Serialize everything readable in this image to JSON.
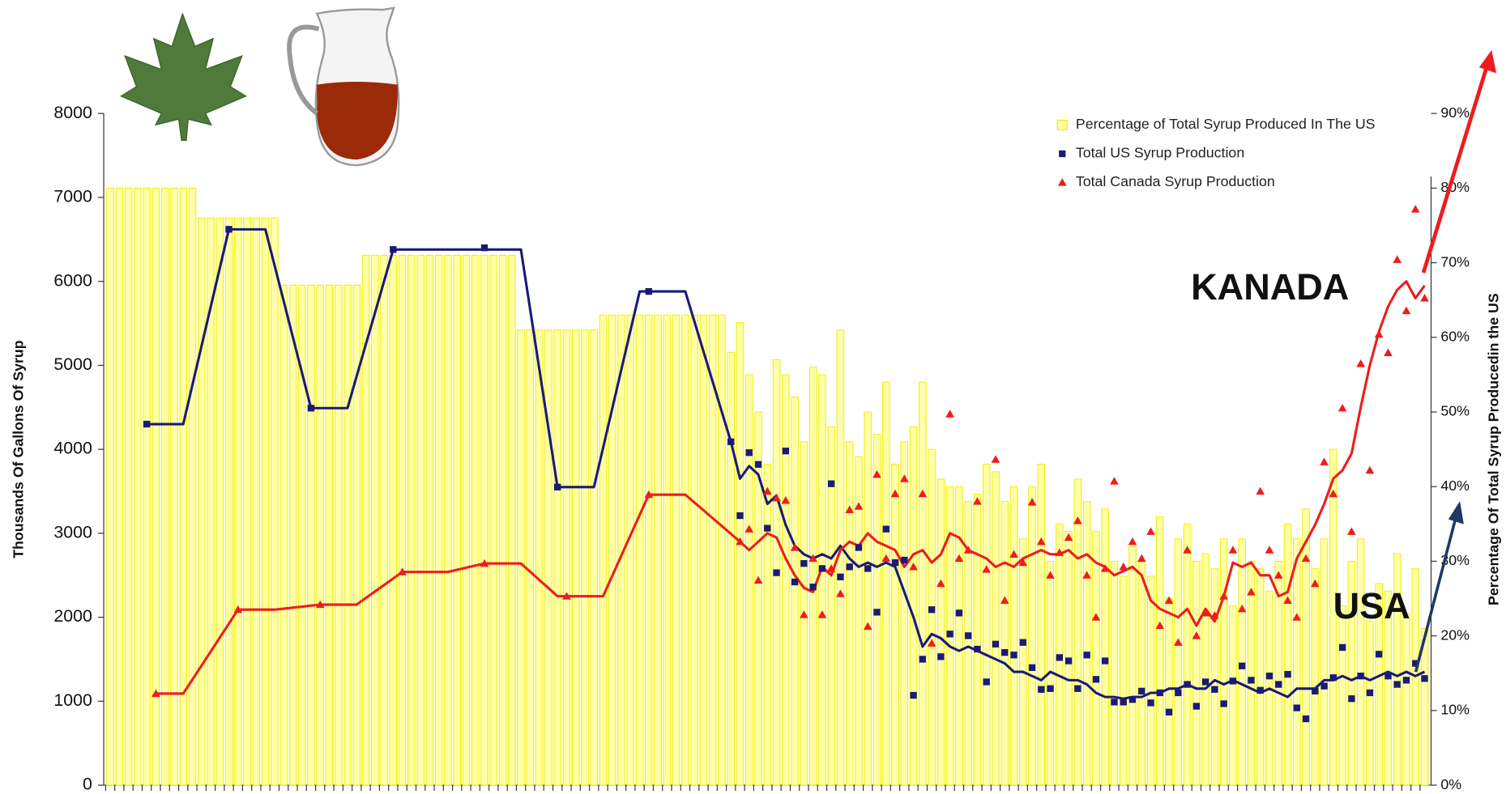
{
  "chart_data": {
    "type": "combo",
    "y_label": "Thousands Of Gallons Of Syrup",
    "y2_label": "Percentage Of Total Syrup Producedin the US",
    "ylim": [
      0,
      8000
    ],
    "yticks": [
      0,
      1000,
      2000,
      3000,
      4000,
      5000,
      6000,
      7000,
      8000
    ],
    "y2lim": [
      0,
      90
    ],
    "y2ticks": [
      {
        "value": 0,
        "label": "0%"
      },
      {
        "value": 10,
        "label": "10%"
      },
      {
        "value": 20,
        "label": "20%"
      },
      {
        "value": 30,
        "label": "30%"
      },
      {
        "value": 40,
        "label": "40%"
      },
      {
        "value": 50,
        "label": "50%"
      },
      {
        "value": 60,
        "label": "60%"
      },
      {
        "value": 70,
        "label": "70%"
      },
      {
        "value": 80,
        "label": "80%"
      },
      {
        "value": 90,
        "label": "90%"
      }
    ],
    "legend": "upper right",
    "categories": [
      null,
      null,
      null,
      null,
      null,
      null,
      null,
      null,
      null,
      null,
      null,
      null,
      null,
      null,
      null,
      null,
      null,
      null,
      null,
      null,
      null,
      null,
      null,
      null,
      null,
      null,
      null,
      null,
      null,
      null,
      null,
      null,
      null,
      null,
      null,
      null,
      null,
      null,
      null,
      null,
      null,
      null,
      null,
      null,
      null,
      null,
      null,
      null,
      null,
      null,
      null,
      null,
      null,
      null,
      null,
      null,
      null,
      null,
      null,
      null,
      null,
      null,
      null,
      null,
      null,
      null,
      null,
      null,
      null,
      null,
      null,
      null,
      null,
      null,
      null,
      null,
      null,
      null,
      null,
      null,
      null,
      null,
      null,
      null,
      null,
      null,
      null,
      null,
      null,
      null,
      null,
      null,
      null,
      null,
      null,
      null,
      null,
      null,
      null,
      null,
      null,
      null,
      null,
      null,
      null,
      null,
      null,
      null,
      null,
      null,
      null,
      null,
      null,
      null,
      null,
      null,
      null,
      null,
      null,
      null,
      null,
      null,
      null,
      null,
      null,
      null,
      null,
      null,
      null,
      null,
      null,
      null,
      null,
      null,
      null,
      null,
      null,
      null,
      null,
      null,
      null,
      null,
      null,
      null,
      null
    ],
    "series": [
      {
        "name": "Percentage of Total Syrup Produced In The US",
        "style": "bar",
        "axis": "y2",
        "color": "#ffffa6",
        "edge": "#eeee00",
        "values": [
          80,
          80,
          80,
          80,
          80,
          80,
          80,
          80,
          80,
          80,
          76,
          76,
          76,
          76,
          76,
          76,
          76,
          76,
          76,
          67,
          67,
          67,
          67,
          67,
          67,
          67,
          67,
          67,
          71,
          71,
          71,
          71,
          71,
          71,
          71,
          71,
          71,
          71,
          71,
          71,
          71,
          71,
          71,
          71,
          71,
          61,
          61,
          61,
          61,
          61,
          61,
          61,
          61,
          61,
          63,
          63,
          63,
          63,
          63,
          63,
          63,
          63,
          63,
          63,
          63,
          63,
          63,
          63,
          58,
          62,
          55,
          50,
          43,
          57,
          55,
          52,
          46,
          56,
          55,
          48,
          61,
          46,
          44,
          50,
          47,
          54,
          43,
          46,
          48,
          54,
          45,
          41,
          40,
          40,
          38,
          39,
          43,
          42,
          38,
          40,
          33,
          40,
          43,
          30,
          35,
          34,
          41,
          38,
          34,
          37,
          30,
          28,
          32,
          30,
          28,
          36,
          25,
          33,
          35,
          30,
          31,
          29,
          33,
          24,
          33,
          30,
          29,
          26,
          30,
          35,
          33,
          37,
          29,
          33,
          45,
          24,
          30,
          33,
          22,
          27,
          26,
          31,
          23,
          29,
          21
        ]
      },
      {
        "name": "Total US Syrup Production",
        "style": "marker",
        "marker": "square",
        "color": "#1a1a78",
        "values": [
          null,
          null,
          null,
          null,
          4300,
          null,
          null,
          null,
          null,
          null,
          null,
          null,
          null,
          6620,
          null,
          null,
          null,
          null,
          null,
          null,
          null,
          null,
          4490,
          null,
          null,
          null,
          null,
          null,
          null,
          null,
          null,
          6380,
          null,
          null,
          null,
          null,
          null,
          null,
          null,
          null,
          null,
          6400,
          null,
          null,
          null,
          null,
          null,
          null,
          null,
          3550,
          null,
          null,
          null,
          null,
          null,
          null,
          null,
          null,
          null,
          5880,
          null,
          null,
          null,
          null,
          null,
          null,
          null,
          null,
          4090,
          3210,
          3960,
          3820,
          3060,
          2530,
          3980,
          2420,
          2640,
          2360,
          2580,
          3590,
          2480,
          2600,
          2830,
          2580,
          2060,
          3050,
          2650,
          2680,
          1070,
          1500,
          2090,
          1530,
          1800,
          2050,
          1780,
          1620,
          1230,
          1680,
          1580,
          1550,
          1700,
          1400,
          1140,
          1150,
          1520,
          1480,
          1150,
          1550,
          1260,
          1480,
          990,
          990,
          1020,
          1120,
          980,
          1100,
          870,
          1100,
          1200,
          940,
          1230,
          1140,
          970,
          1240,
          1420,
          1250,
          1130,
          1300,
          1200,
          1320,
          920,
          790,
          1120,
          1180,
          1280,
          1640,
          1030,
          1300,
          1100,
          1560,
          1300,
          1200,
          1250,
          1450,
          1270
        ]
      },
      {
        "style": "line",
        "color": "#1a1a78",
        "values": [
          null,
          null,
          null,
          null,
          4300,
          4300,
          4300,
          4300,
          4300,
          4764,
          5228,
          5692,
          6156,
          6620,
          6620,
          6620,
          6620,
          6620,
          6194,
          5768,
          5342,
          4916,
          4490,
          4490,
          4490,
          4490,
          4490,
          4868,
          5246,
          5624,
          6002,
          6380,
          6380,
          6380,
          6380,
          6380,
          6380,
          6380,
          6380,
          6380,
          6380,
          6380,
          6380,
          6380,
          6380,
          6380,
          5672,
          4965,
          4258,
          3550,
          3550,
          3550,
          3550,
          3550,
          4016,
          4482,
          4948,
          5414,
          5880,
          5880,
          5880,
          5880,
          5880,
          5880,
          5522,
          5164,
          4806,
          4448,
          4090,
          3650,
          3800,
          3700,
          3350,
          3450,
          3100,
          2850,
          2750,
          2700,
          2750,
          2700,
          2850,
          2700,
          2600,
          2650,
          2600,
          2650,
          2600,
          2300,
          2000,
          1650,
          1800,
          1750,
          1650,
          1600,
          1650,
          1600,
          1550,
          1500,
          1450,
          1350,
          1350,
          1300,
          1250,
          1350,
          1300,
          1250,
          1250,
          1200,
          1100,
          1050,
          1050,
          1030,
          1050,
          1050,
          1100,
          1100,
          1150,
          1150,
          1200,
          1150,
          1150,
          1250,
          1200,
          1250,
          1200,
          1150,
          1100,
          1150,
          1100,
          1050,
          1150,
          1150,
          1150,
          1250,
          1250,
          1300,
          1250,
          1300,
          1250,
          1300,
          1350,
          1300,
          1350,
          1300,
          1350
        ]
      },
      {
        "name": "Total Canada Syrup Production",
        "style": "marker",
        "marker": "triangle",
        "color": "#ee1c1c",
        "values": [
          null,
          null,
          null,
          null,
          null,
          1090,
          null,
          null,
          null,
          null,
          null,
          null,
          null,
          null,
          2090,
          null,
          null,
          null,
          null,
          null,
          null,
          null,
          null,
          2150,
          null,
          null,
          null,
          null,
          null,
          null,
          null,
          null,
          2540,
          null,
          null,
          null,
          null,
          null,
          null,
          null,
          null,
          2640,
          null,
          null,
          null,
          null,
          null,
          null,
          null,
          null,
          2250,
          null,
          null,
          null,
          null,
          null,
          null,
          null,
          null,
          3460,
          null,
          null,
          null,
          null,
          null,
          null,
          null,
          null,
          null,
          2900,
          3050,
          2440,
          3500,
          3420,
          3390,
          2830,
          2030,
          2700,
          2030,
          2580,
          2280,
          3280,
          3320,
          1890,
          3700,
          2700,
          3470,
          3650,
          2600,
          3470,
          1690,
          2400,
          4420,
          2700,
          2800,
          3380,
          2570,
          3880,
          2200,
          2750,
          2650,
          3370,
          2900,
          2500,
          2770,
          2950,
          3150,
          2500,
          2000,
          2580,
          3620,
          2600,
          2900,
          2700,
          3020,
          1900,
          2200,
          1700,
          2800,
          1780,
          2050,
          2020,
          2250,
          2800,
          2100,
          2300,
          3500,
          2800,
          2500,
          2200,
          2000,
          2700,
          2400,
          3850,
          3470,
          4490,
          3020,
          5020,
          3750,
          5370,
          5150,
          6260,
          5650,
          6860,
          5800
        ]
      },
      {
        "style": "line",
        "color": "#ee1c1c",
        "values": [
          null,
          null,
          null,
          null,
          null,
          1090,
          1090,
          1090,
          1090,
          1257,
          1423,
          1590,
          1757,
          1923,
          2090,
          2090,
          2090,
          2090,
          2090,
          2102,
          2114,
          2126,
          2138,
          2150,
          2150,
          2150,
          2150,
          2150,
          2228,
          2306,
          2384,
          2462,
          2540,
          2540,
          2540,
          2540,
          2540,
          2540,
          2565,
          2590,
          2615,
          2640,
          2640,
          2640,
          2640,
          2640,
          2543,
          2445,
          2348,
          2250,
          2250,
          2250,
          2250,
          2250,
          2250,
          2492,
          2734,
          2976,
          3218,
          3460,
          3460,
          3460,
          3460,
          3460,
          3367,
          3273,
          3180,
          3087,
          2993,
          2900,
          2800,
          2900,
          3000,
          2950,
          2700,
          2500,
          2350,
          2300,
          2600,
          2500,
          2800,
          2900,
          2850,
          3000,
          2900,
          2850,
          2800,
          2600,
          2750,
          2800,
          2650,
          2750,
          3000,
          2950,
          2800,
          2750,
          2700,
          2600,
          2650,
          2600,
          2700,
          2750,
          2800,
          2750,
          2750,
          2800,
          2700,
          2750,
          2650,
          2600,
          2500,
          2550,
          2600,
          2500,
          2200,
          2100,
          2050,
          2000,
          2100,
          1900,
          2100,
          1950,
          2250,
          2650,
          2600,
          2650,
          2500,
          2500,
          2250,
          2300,
          2700,
          2900,
          3100,
          3350,
          3650,
          3750,
          3950,
          4500,
          5000,
          5400,
          5700,
          5900,
          6000,
          5800,
          5950
        ]
      }
    ],
    "annotations": [
      {
        "text": "KANADA",
        "color": "#ee1c1c"
      },
      {
        "text": "USA",
        "color": "#1f3864"
      }
    ]
  }
}
